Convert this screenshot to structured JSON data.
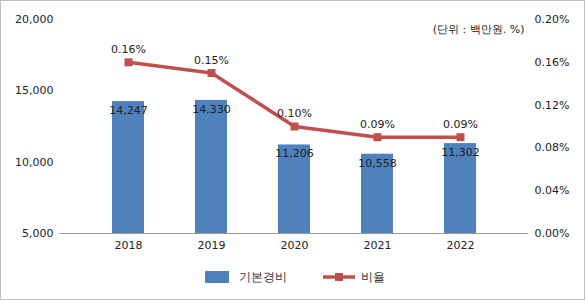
{
  "chart_data": {
    "type": "bar",
    "annotations": [
      "(단위 : 백만원. %)"
    ],
    "categories": [
      "2018",
      "2019",
      "2020",
      "2021",
      "2022"
    ],
    "series": [
      {
        "name": "기본경비",
        "type": "bar",
        "color": "#4F81BD",
        "values": [
          14247,
          14330,
          11206,
          10558,
          11302
        ],
        "value_labels": [
          "14,247",
          "14,330",
          "11,206",
          "10,558",
          "11,302"
        ]
      },
      {
        "name": "비율",
        "type": "line",
        "axis": "y2",
        "color": "#C0504D",
        "marker": "square",
        "values": [
          0.16,
          0.15,
          0.1,
          0.09,
          0.09
        ],
        "value_labels": [
          "0.16%",
          "0.15%",
          "0.10%",
          "0.09%",
          "0.09%"
        ]
      }
    ],
    "ylim": [
      5000,
      20000
    ],
    "yticks": [
      {
        "value": 5000,
        "label": "5,000"
      },
      {
        "value": 10000,
        "label": "10,000"
      },
      {
        "value": 15000,
        "label": "15,000"
      },
      {
        "value": 20000,
        "label": "20,000"
      }
    ],
    "y2lim": [
      0,
      0.2
    ],
    "y2ticks": [
      {
        "value": 0,
        "label": "0.00%"
      },
      {
        "value": 0.04,
        "label": "0.04%"
      },
      {
        "value": 0.08,
        "label": "0.08%"
      },
      {
        "value": 0.12,
        "label": "0.12%"
      },
      {
        "value": 0.16,
        "label": "0.16%"
      },
      {
        "value": 0.2,
        "label": "0.20%"
      }
    ],
    "data_labels": true,
    "legend": "bottom",
    "grid": false
  }
}
